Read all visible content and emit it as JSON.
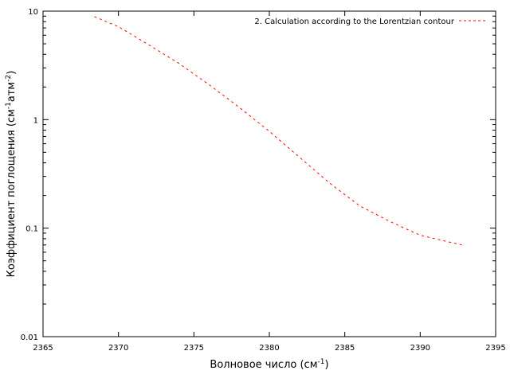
{
  "chart_data": {
    "type": "line",
    "title": "",
    "xlabel": "Волновое число (см",
    "xlabel_sup": "-1",
    "xlabel_end": ")",
    "ylabel_parts": [
      "Коэффициент поглощения (см",
      "-1",
      "атм",
      "-2",
      ")"
    ],
    "xlim": [
      2365,
      2395
    ],
    "ylim": [
      0.01,
      10
    ],
    "y_scale": "log",
    "x_ticks": [
      2365,
      2370,
      2375,
      2380,
      2385,
      2390,
      2395
    ],
    "y_ticks": [
      0.01,
      0.1,
      1,
      10
    ],
    "y_tick_labels": [
      "0.01",
      "0.1",
      "1",
      "10"
    ],
    "legend_position": "top-right",
    "grid": false,
    "series": [
      {
        "name": "2. Calculation according to the Lorentzian contour",
        "color": "#ff0000",
        "style": "dashed",
        "x": [
          2368.4,
          2370,
          2372,
          2374,
          2376,
          2378,
          2380,
          2382,
          2384,
          2386,
          2388,
          2390,
          2392,
          2392.8
        ],
        "y": [
          8.9,
          7.2,
          4.9,
          3.3,
          2.1,
          1.3,
          0.78,
          0.45,
          0.26,
          0.16,
          0.115,
          0.086,
          0.074,
          0.07
        ]
      }
    ]
  }
}
